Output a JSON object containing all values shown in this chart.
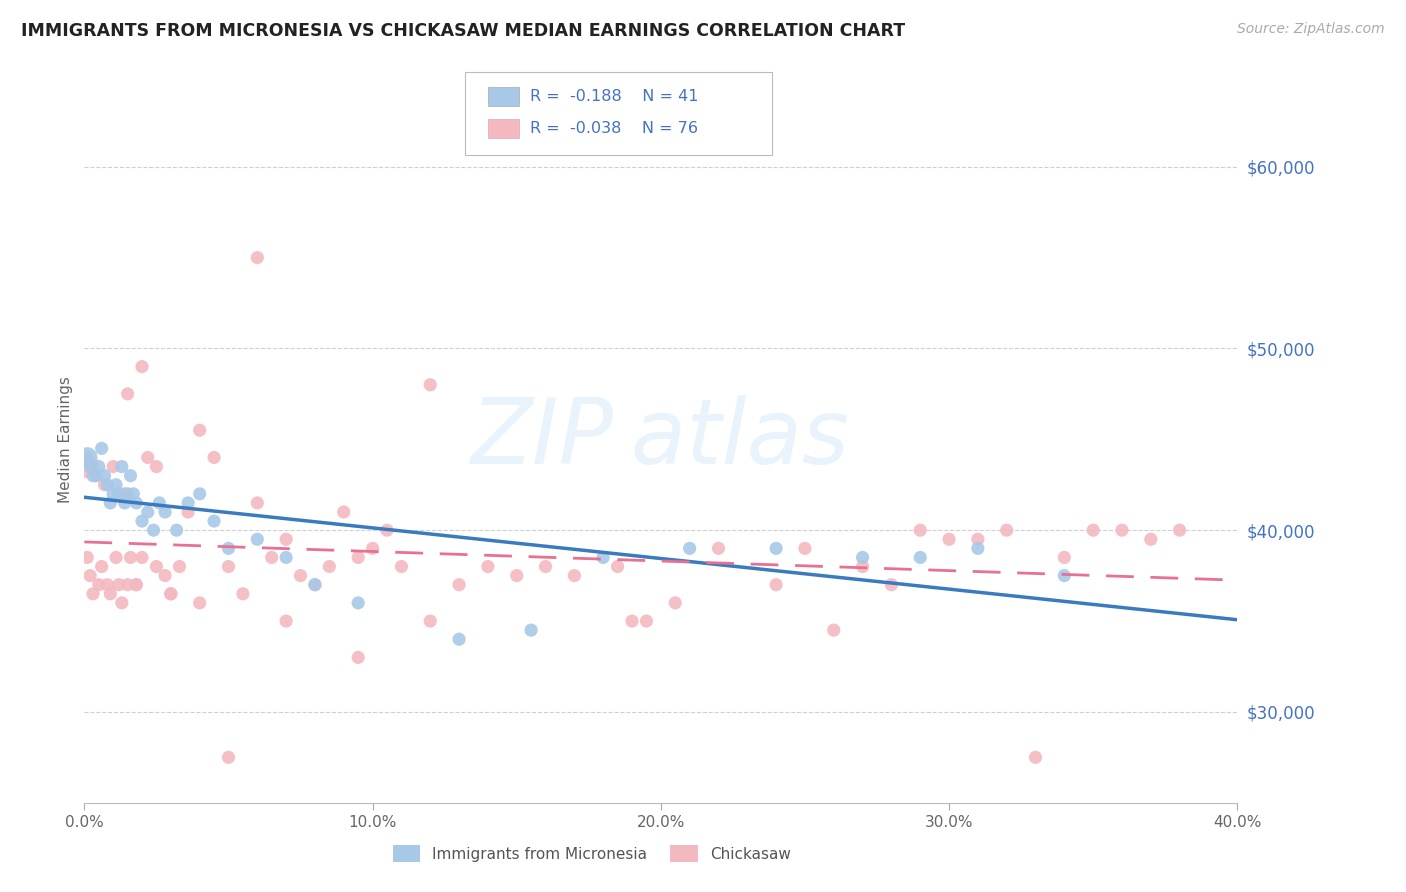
{
  "title": "IMMIGRANTS FROM MICRONESIA VS CHICKASAW MEDIAN EARNINGS CORRELATION CHART",
  "source": "Source: ZipAtlas.com",
  "ylabel": "Median Earnings",
  "series1_label": "Immigrants from Micronesia",
  "series2_label": "Chickasaw",
  "color1": "#a8c8e8",
  "color2": "#f4b8c0",
  "trend1_color": "#3a7abf",
  "trend2_color": "#e87090",
  "legend_text_color": "#4472c4",
  "ytick_color": "#4472c4",
  "background_color": "#ffffff",
  "xlim": [
    0.0,
    0.4
  ],
  "ylim": [
    25000,
    65000
  ],
  "yticks": [
    30000,
    40000,
    50000,
    60000
  ],
  "ytick_labels": [
    "$30,000",
    "$40,000",
    "$50,000",
    "$60,000"
  ],
  "xticks": [
    0.0,
    0.1,
    0.2,
    0.3,
    0.4
  ],
  "xtick_labels": [
    "0.0%",
    "10.0%",
    "20.0%",
    "30.0%",
    "40.0%"
  ],
  "series1_x": [
    0.001,
    0.002,
    0.003,
    0.004,
    0.005,
    0.006,
    0.007,
    0.008,
    0.009,
    0.01,
    0.011,
    0.012,
    0.013,
    0.014,
    0.015,
    0.016,
    0.017,
    0.018,
    0.02,
    0.022,
    0.024,
    0.026,
    0.028,
    0.032,
    0.036,
    0.04,
    0.045,
    0.05,
    0.06,
    0.07,
    0.08,
    0.095,
    0.13,
    0.155,
    0.18,
    0.21,
    0.24,
    0.27,
    0.29,
    0.31,
    0.34
  ],
  "series1_y": [
    44000,
    43500,
    43000,
    43000,
    43500,
    44500,
    43000,
    42500,
    41500,
    42000,
    42500,
    42000,
    43500,
    41500,
    42000,
    43000,
    42000,
    41500,
    40500,
    41000,
    40000,
    41500,
    41000,
    40000,
    41500,
    42000,
    40500,
    39000,
    39500,
    38500,
    37000,
    36000,
    34000,
    34500,
    38500,
    39000,
    39000,
    38500,
    38500,
    39000,
    37500
  ],
  "series2_x": [
    0.001,
    0.002,
    0.003,
    0.004,
    0.005,
    0.006,
    0.007,
    0.008,
    0.009,
    0.01,
    0.011,
    0.012,
    0.013,
    0.014,
    0.015,
    0.016,
    0.018,
    0.02,
    0.022,
    0.025,
    0.028,
    0.03,
    0.033,
    0.036,
    0.04,
    0.045,
    0.05,
    0.055,
    0.06,
    0.065,
    0.07,
    0.075,
    0.08,
    0.085,
    0.09,
    0.095,
    0.1,
    0.105,
    0.11,
    0.12,
    0.13,
    0.14,
    0.15,
    0.16,
    0.17,
    0.185,
    0.195,
    0.205,
    0.22,
    0.24,
    0.25,
    0.26,
    0.27,
    0.28,
    0.29,
    0.3,
    0.31,
    0.32,
    0.33,
    0.34,
    0.35,
    0.36,
    0.37,
    0.38,
    0.12,
    0.06,
    0.04,
    0.02,
    0.015,
    0.03,
    0.018,
    0.025,
    0.05,
    0.07,
    0.095,
    0.19
  ],
  "series2_y": [
    38500,
    37500,
    36500,
    43000,
    37000,
    38000,
    42500,
    37000,
    36500,
    43500,
    38500,
    37000,
    36000,
    42000,
    37000,
    38500,
    37000,
    38500,
    44000,
    43500,
    37500,
    36500,
    38000,
    41000,
    36000,
    44000,
    38000,
    36500,
    41500,
    38500,
    39500,
    37500,
    37000,
    38000,
    41000,
    38500,
    39000,
    40000,
    38000,
    35000,
    37000,
    38000,
    37500,
    38000,
    37500,
    38000,
    35000,
    36000,
    39000,
    37000,
    39000,
    34500,
    38000,
    37000,
    40000,
    39500,
    39500,
    40000,
    27500,
    38500,
    40000,
    40000,
    39500,
    40000,
    48000,
    55000,
    45500,
    49000,
    47500,
    36500,
    37000,
    38000,
    27500,
    35000,
    33000,
    35000
  ],
  "series1_big_x": [
    0.001
  ],
  "series1_big_y": [
    43500
  ],
  "watermark_text": "ZIPatlas"
}
